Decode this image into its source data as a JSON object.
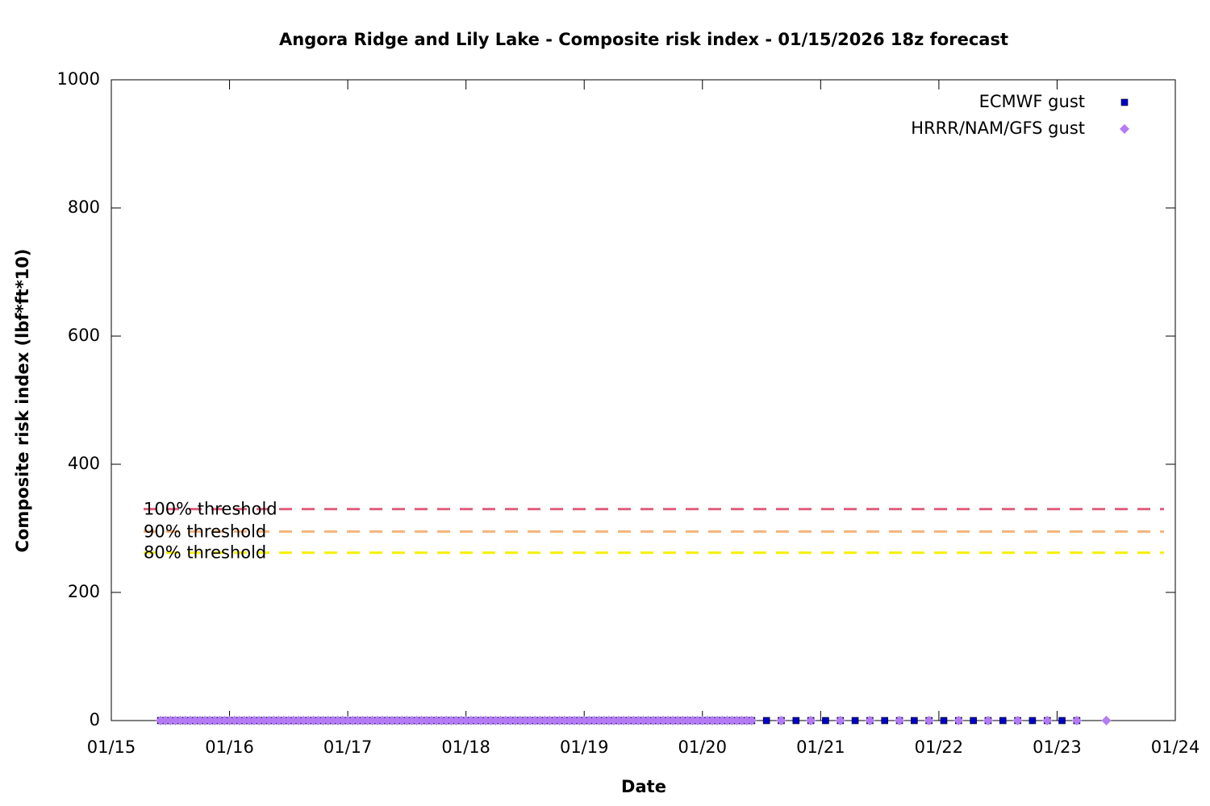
{
  "chart_data": {
    "type": "scatter",
    "title": "Angora Ridge and Lily Lake - Composite risk index - 01/15/2026 18z forecast",
    "xlabel": "Date",
    "ylabel": "Composite risk index (lbf*ft*10)",
    "xlim": [
      0,
      216
    ],
    "xticks": [
      {
        "value": 0,
        "label": "01/15"
      },
      {
        "value": 24,
        "label": "01/16"
      },
      {
        "value": 48,
        "label": "01/17"
      },
      {
        "value": 72,
        "label": "01/18"
      },
      {
        "value": 96,
        "label": "01/19"
      },
      {
        "value": 120,
        "label": "01/20"
      },
      {
        "value": 144,
        "label": "01/21"
      },
      {
        "value": 168,
        "label": "01/22"
      },
      {
        "value": 192,
        "label": "01/23"
      },
      {
        "value": 216,
        "label": "01/24"
      }
    ],
    "ylim": [
      0,
      1000
    ],
    "yticks": [
      0,
      200,
      400,
      600,
      800,
      1000
    ],
    "grid": false,
    "legend": "top-right",
    "thresholds": [
      {
        "label": "100% threshold",
        "value": 330,
        "color": "#e0607e"
      },
      {
        "label": "90% threshold",
        "value": 295,
        "color": "#f5b57d"
      },
      {
        "label": "80% threshold",
        "value": 262,
        "color": "#f5f000"
      }
    ],
    "series": [
      {
        "name": "ECMWF gust",
        "color": "#0000c8",
        "marker": "square",
        "x": [
          10,
          11,
          12,
          13,
          14,
          15,
          16,
          17,
          18,
          19,
          20,
          21,
          22,
          23,
          24,
          25,
          26,
          27,
          28,
          29,
          30,
          31,
          32,
          33,
          34,
          35,
          36,
          37,
          38,
          39,
          40,
          41,
          42,
          43,
          44,
          45,
          46,
          47,
          48,
          49,
          50,
          51,
          52,
          53,
          54,
          55,
          56,
          57,
          58,
          59,
          60,
          61,
          62,
          63,
          64,
          65,
          66,
          67,
          68,
          69,
          70,
          71,
          72,
          73,
          74,
          75,
          76,
          77,
          78,
          79,
          80,
          81,
          82,
          83,
          84,
          85,
          86,
          87,
          88,
          89,
          90,
          91,
          92,
          93,
          94,
          95,
          96,
          97,
          98,
          99,
          100,
          101,
          102,
          103,
          104,
          105,
          106,
          107,
          108,
          109,
          110,
          111,
          112,
          113,
          114,
          115,
          116,
          117,
          118,
          119,
          120,
          121,
          122,
          123,
          124,
          125,
          126,
          127,
          128,
          129,
          130,
          133,
          136,
          139,
          142,
          145,
          148,
          151,
          154,
          157,
          160,
          163,
          166,
          169,
          172,
          175,
          178,
          181,
          184,
          187,
          190,
          193,
          196
        ],
        "values": [
          0,
          0,
          0,
          0,
          0,
          0,
          0,
          0,
          0,
          0,
          0,
          0,
          0,
          0,
          0,
          0,
          0,
          0,
          0,
          0,
          0,
          0,
          0,
          0,
          0,
          0,
          0,
          0,
          0,
          0,
          0,
          0,
          0,
          0,
          0,
          0,
          0,
          0,
          0,
          0,
          0,
          0,
          0,
          0,
          0,
          0,
          0,
          0,
          0,
          0,
          0,
          0,
          0,
          0,
          0,
          0,
          0,
          0,
          0,
          0,
          0,
          0,
          0,
          0,
          0,
          0,
          0,
          0,
          0,
          0,
          0,
          0,
          0,
          0,
          0,
          0,
          0,
          0,
          0,
          0,
          0,
          0,
          0,
          0,
          0,
          0,
          0,
          0,
          0,
          0,
          0,
          0,
          0,
          0,
          0,
          0,
          0,
          0,
          0,
          0,
          0,
          0,
          0,
          0,
          0,
          0,
          0,
          0,
          0,
          0,
          0,
          0,
          0,
          0,
          0,
          0,
          0,
          0,
          0,
          0,
          0,
          0,
          0,
          0,
          0,
          0,
          0,
          0,
          0,
          0,
          0,
          0,
          0,
          0,
          0,
          0,
          0,
          0,
          0,
          0,
          0,
          0,
          0
        ]
      },
      {
        "name": "HRRR/NAM/GFS gust",
        "color": "#b57bf5",
        "marker": "diamond",
        "x": [
          10,
          11,
          12,
          13,
          14,
          15,
          16,
          17,
          18,
          19,
          20,
          21,
          22,
          23,
          24,
          25,
          26,
          27,
          28,
          29,
          30,
          31,
          32,
          33,
          34,
          35,
          36,
          37,
          38,
          39,
          40,
          41,
          42,
          43,
          44,
          45,
          46,
          47,
          48,
          49,
          50,
          51,
          52,
          53,
          54,
          55,
          56,
          57,
          58,
          59,
          60,
          61,
          62,
          63,
          64,
          65,
          66,
          67,
          68,
          69,
          70,
          71,
          72,
          73,
          74,
          75,
          76,
          77,
          78,
          79,
          80,
          81,
          82,
          83,
          84,
          85,
          86,
          87,
          88,
          89,
          90,
          91,
          92,
          93,
          94,
          95,
          96,
          97,
          98,
          99,
          100,
          101,
          102,
          103,
          104,
          105,
          106,
          107,
          108,
          109,
          110,
          111,
          112,
          113,
          114,
          115,
          116,
          117,
          118,
          119,
          120,
          121,
          122,
          123,
          124,
          125,
          126,
          127,
          128,
          129,
          130,
          136,
          142,
          148,
          154,
          160,
          166,
          172,
          178,
          184,
          190,
          196,
          202
        ],
        "values": [
          0,
          0,
          0,
          0,
          0,
          0,
          0,
          0,
          0,
          0,
          0,
          0,
          0,
          0,
          0,
          0,
          0,
          0,
          0,
          0,
          0,
          0,
          0,
          0,
          0,
          0,
          0,
          0,
          0,
          0,
          0,
          0,
          0,
          0,
          0,
          0,
          0,
          0,
          0,
          0,
          0,
          0,
          0,
          0,
          0,
          0,
          0,
          0,
          0,
          0,
          0,
          0,
          0,
          0,
          0,
          0,
          0,
          0,
          0,
          0,
          0,
          0,
          0,
          0,
          0,
          0,
          0,
          0,
          0,
          0,
          0,
          0,
          0,
          0,
          0,
          0,
          0,
          0,
          0,
          0,
          0,
          0,
          0,
          0,
          0,
          0,
          0,
          0,
          0,
          0,
          0,
          0,
          0,
          0,
          0,
          0,
          0,
          0,
          0,
          0,
          0,
          0,
          0,
          0,
          0,
          0,
          0,
          0,
          0,
          0,
          0,
          0,
          0,
          0,
          0,
          0,
          0,
          0,
          0,
          0,
          0,
          0,
          0,
          0,
          0,
          0,
          0,
          0,
          0,
          0,
          0,
          0,
          0
        ]
      }
    ]
  }
}
